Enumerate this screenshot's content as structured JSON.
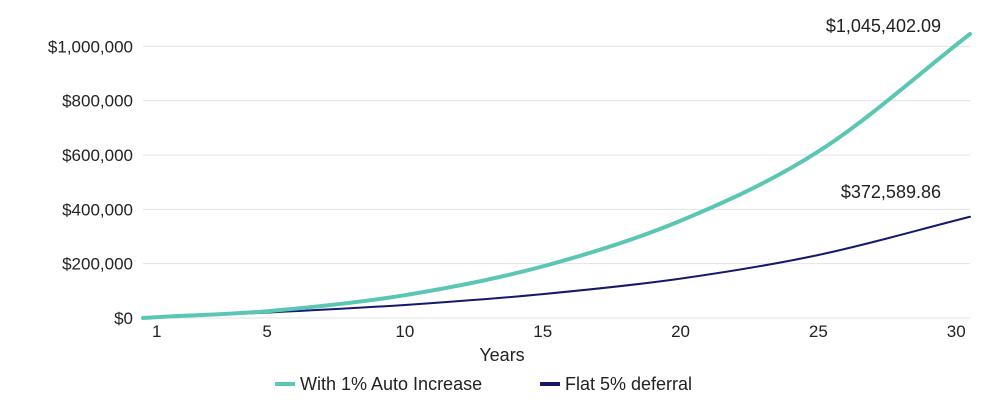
{
  "chart_data": {
    "type": "line",
    "xlabel": "Years",
    "ylabel": "",
    "xlim": [
      0.5,
      30.5
    ],
    "ylim": [
      0,
      1045402.09
    ],
    "xticks": [
      1,
      5,
      10,
      15,
      20,
      25,
      30
    ],
    "xtick_labels": [
      "1",
      "5",
      "10",
      "15",
      "20",
      "25",
      "30"
    ],
    "yticks": [
      0,
      200000,
      400000,
      600000,
      800000,
      1000000
    ],
    "ytick_labels": [
      "$0",
      "$200,000",
      "$400,000",
      "$600,000",
      "$800,000",
      "$1,000,000"
    ],
    "grid": true,
    "legend_position": "bottom-center",
    "x": [
      0.5,
      1,
      5,
      10,
      15,
      20,
      25,
      30.5
    ],
    "series": [
      {
        "name": "With 1% Auto Increase",
        "color": "#5cc6b4",
        "values": [
          0,
          3000,
          25000,
          84000,
          190000,
          358000,
          613000,
          1045402.09
        ],
        "end_label": "$1,045,402.09"
      },
      {
        "name": "Flat 5% deferral",
        "color": "#14196b",
        "values": [
          0,
          2500,
          20000,
          48000,
          88000,
          145000,
          232000,
          372589.86
        ],
        "end_label": "$372,589.86"
      }
    ]
  }
}
